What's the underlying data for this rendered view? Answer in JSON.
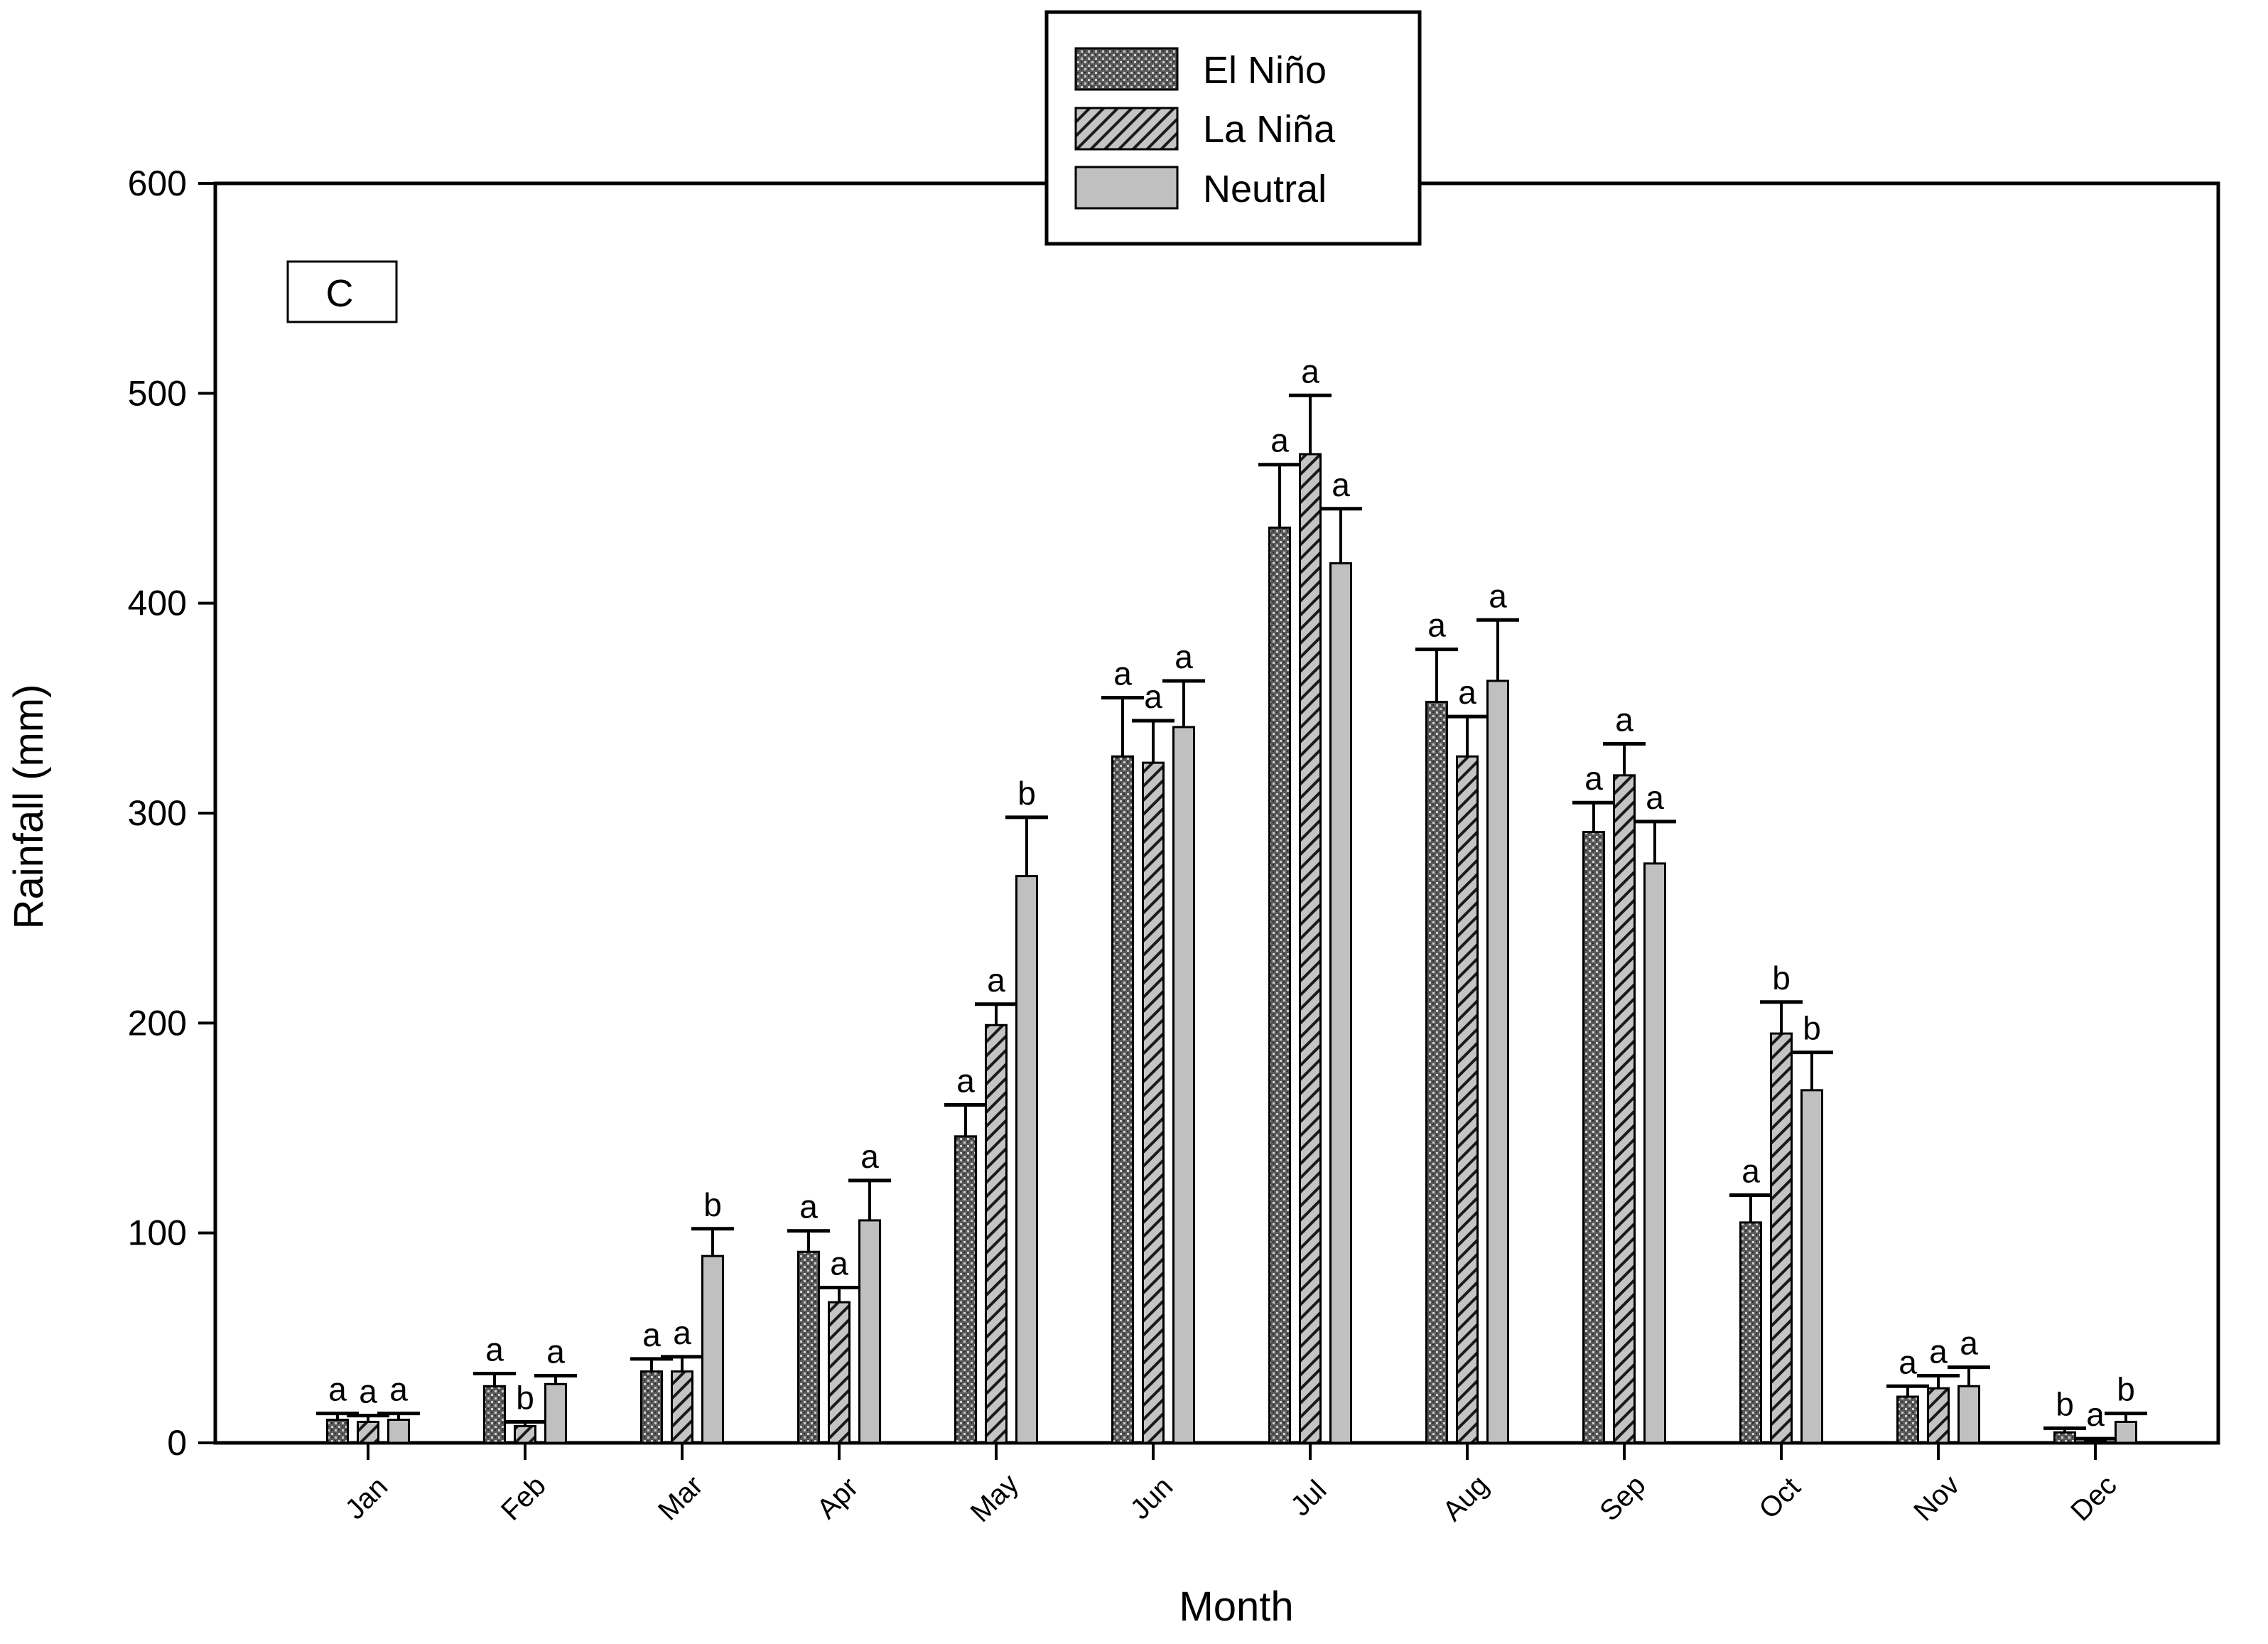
{
  "chart_data": {
    "type": "bar",
    "panel_label": "C",
    "title": "",
    "xlabel": "Month",
    "ylabel": "Rainfall (mm)",
    "ylim": [
      0,
      600
    ],
    "yticks": [
      0,
      100,
      200,
      300,
      400,
      500,
      600
    ],
    "legend_position": "top-center",
    "categories": [
      "Jan",
      "Feb",
      "Mar",
      "Apr",
      "May",
      "Jun",
      "Jul",
      "Aug",
      "Sep",
      "Oct",
      "Nov",
      "Dec"
    ],
    "series": [
      {
        "name": "El Niño",
        "pattern": "dotted-dark",
        "values": [
          11,
          27,
          34,
          91,
          146,
          327,
          436,
          353,
          291,
          105,
          22,
          5
        ],
        "errors": [
          3,
          6,
          6,
          10,
          15,
          28,
          30,
          25,
          14,
          13,
          5,
          2
        ],
        "letters": [
          "a",
          "a",
          "a",
          "a",
          "a",
          "a",
          "a",
          "a",
          "a",
          "a",
          "a",
          "b"
        ]
      },
      {
        "name": "La Niña",
        "pattern": "diagonal-hatch",
        "values": [
          10,
          8,
          34,
          67,
          199,
          324,
          471,
          327,
          318,
          195,
          26,
          1
        ],
        "errors": [
          3,
          2,
          7,
          7,
          10,
          20,
          28,
          19,
          15,
          15,
          6,
          1
        ],
        "letters": [
          "a",
          "b",
          "a",
          "a",
          "a",
          "a",
          "a",
          "a",
          "a",
          "b",
          "a",
          "a"
        ]
      },
      {
        "name": "Neutral",
        "pattern": "solid-gray",
        "values": [
          11,
          28,
          89,
          106,
          270,
          341,
          419,
          363,
          276,
          168,
          27,
          10
        ],
        "errors": [
          3,
          4,
          13,
          19,
          28,
          22,
          26,
          29,
          20,
          18,
          9,
          4
        ],
        "letters": [
          "a",
          "a",
          "b",
          "a",
          "b",
          "a",
          "a",
          "a",
          "a",
          "b",
          "a",
          "b"
        ]
      }
    ],
    "colors": {
      "el_nino_fill": "#5a5a5a",
      "el_nino_dot": "#d0d0d0",
      "la_nina_fill": "#b8b8b8",
      "la_nina_line": "#1a1a1a",
      "neutral_fill": "#c0c0c0",
      "axis": "#000000"
    }
  }
}
